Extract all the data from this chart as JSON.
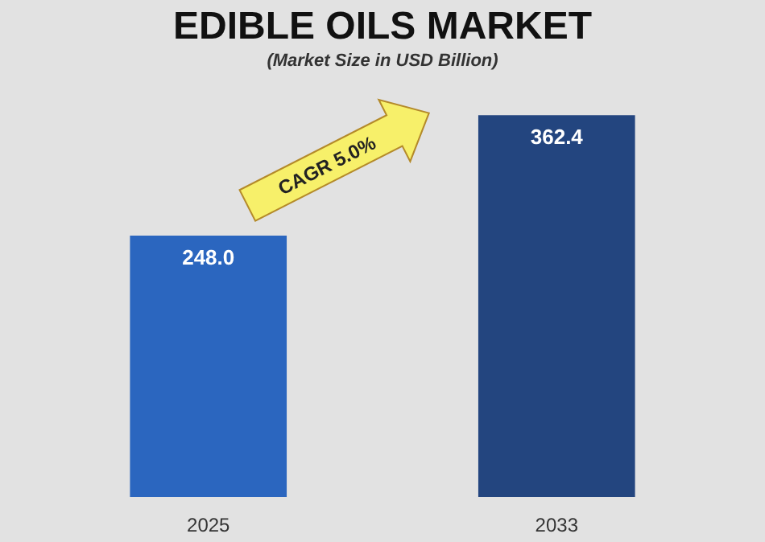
{
  "chart_data": {
    "type": "bar",
    "title": "EDIBLE OILS MARKET",
    "subtitle": "(Market Size in USD Billion)",
    "categories": [
      "2025",
      "2033"
    ],
    "values": [
      248.0,
      362.4
    ],
    "colors": [
      "#2b66bf",
      "#23457f"
    ],
    "value_labels": [
      "248.0",
      "362.4"
    ],
    "annotations": [
      "CAGR 5.0%"
    ],
    "legend": false
  }
}
